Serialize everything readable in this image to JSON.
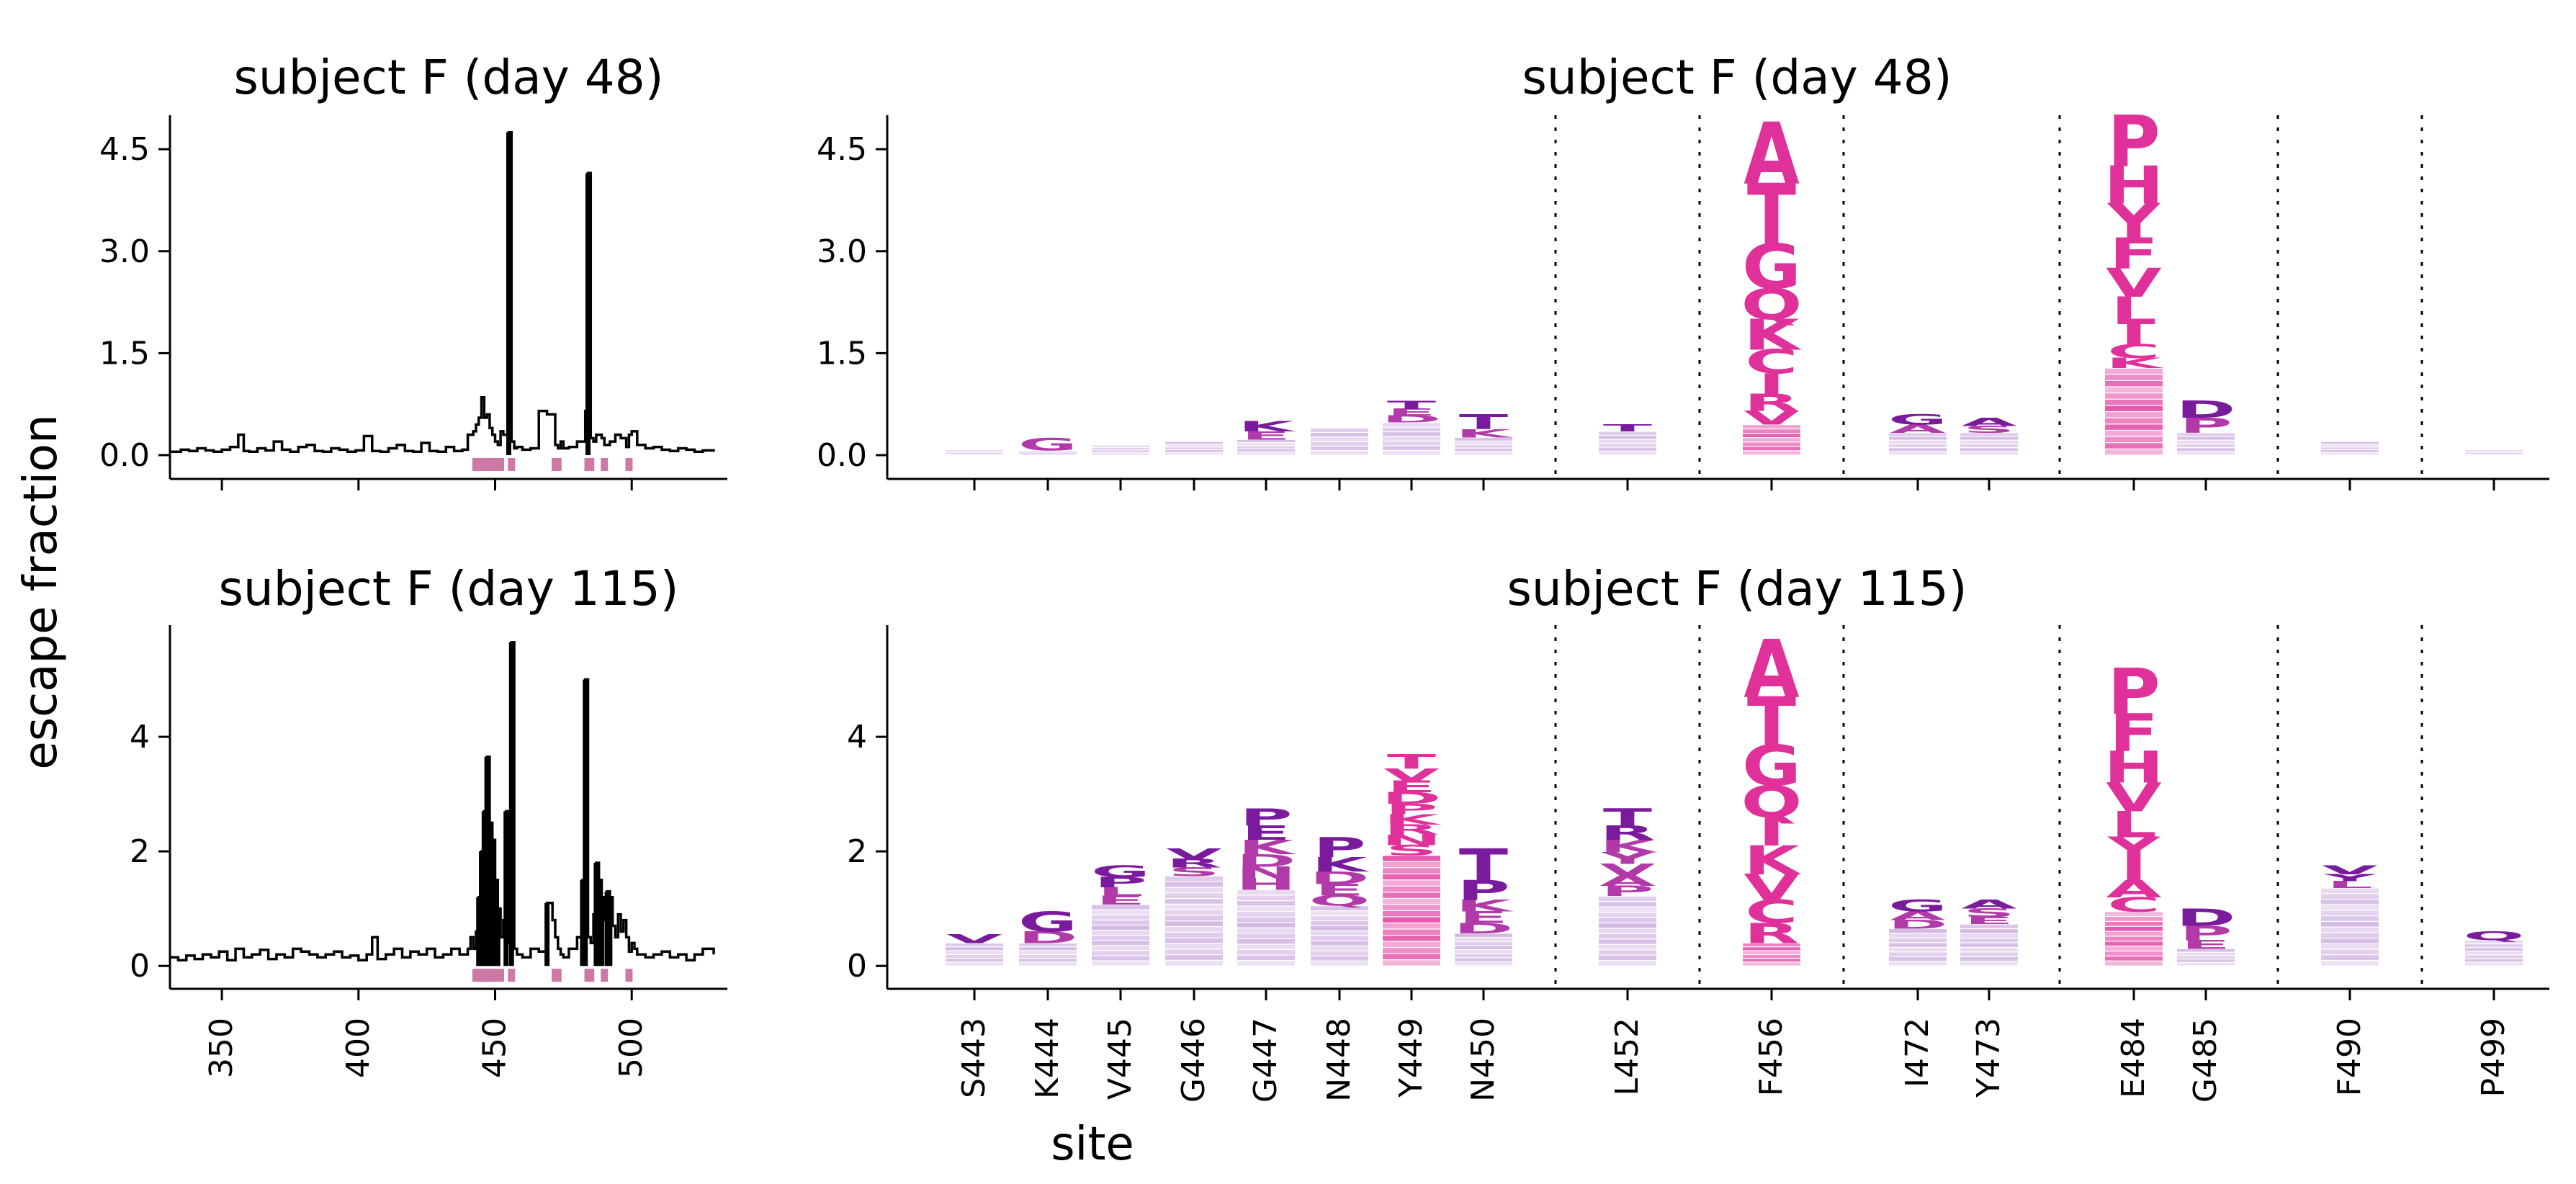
{
  "figure": {
    "ylabel": "escape fraction",
    "xlabel": "site"
  },
  "colors": {
    "line": "#000000",
    "site_marker": "#cc79a7",
    "high": "#e0309a",
    "mid": "#b23aa8",
    "low": "#7a1a9c",
    "faint": "#c9a8dd",
    "divider": "#000000"
  },
  "chart_data": [
    {
      "type": "line",
      "title": "subject F (day 48)",
      "xlim": [
        331,
        535
      ],
      "ylim": [
        -0.35,
        5.0
      ],
      "yticks": [
        "0.0",
        "1.5",
        "3.0",
        "4.5"
      ],
      "ytick_values": [
        0.0,
        1.5,
        3.0,
        4.5
      ],
      "xticks": [
        "350",
        "400",
        "450",
        "500"
      ],
      "xtick_values": [
        350,
        400,
        450,
        500
      ],
      "x": [
        331,
        335,
        338,
        341,
        344,
        347,
        350,
        353,
        356,
        358,
        360,
        363,
        366,
        369,
        372,
        375,
        378,
        381,
        384,
        387,
        390,
        393,
        396,
        399,
        402,
        405,
        408,
        411,
        414,
        417,
        420,
        423,
        426,
        429,
        432,
        435,
        438,
        440,
        442,
        443,
        444,
        445,
        446,
        447,
        448,
        449,
        450,
        451,
        452,
        453,
        454,
        455,
        456,
        457,
        458,
        460,
        463,
        466,
        469,
        472,
        473,
        474,
        475,
        477,
        480,
        483,
        484,
        485,
        486,
        487,
        489,
        490,
        492,
        494,
        496,
        498,
        499,
        500,
        502,
        505,
        508,
        511,
        514,
        517,
        520,
        523,
        526,
        530
      ],
      "values": [
        0.05,
        0.08,
        0.06,
        0.1,
        0.07,
        0.05,
        0.08,
        0.12,
        0.3,
        0.06,
        0.05,
        0.1,
        0.07,
        0.2,
        0.08,
        0.05,
        0.12,
        0.15,
        0.06,
        0.05,
        0.1,
        0.08,
        0.05,
        0.07,
        0.28,
        0.06,
        0.05,
        0.1,
        0.15,
        0.06,
        0.05,
        0.18,
        0.06,
        0.05,
        0.12,
        0.06,
        0.08,
        0.3,
        0.35,
        0.45,
        0.55,
        0.85,
        0.55,
        0.6,
        0.4,
        0.3,
        0.2,
        0.15,
        0.35,
        0.3,
        0.3,
        4.75,
        0.2,
        0.1,
        0.12,
        0.08,
        0.1,
        0.65,
        0.6,
        0.15,
        0.1,
        0.2,
        0.1,
        0.12,
        0.2,
        0.65,
        4.15,
        0.25,
        0.2,
        0.3,
        0.25,
        0.15,
        0.2,
        0.3,
        0.25,
        0.12,
        0.3,
        0.35,
        0.15,
        0.1,
        0.12,
        0.08,
        0.06,
        0.1,
        0.08,
        0.05,
        0.07,
        0.05
      ],
      "site_markers": [
        443,
        444,
        445,
        446,
        447,
        448,
        449,
        450,
        452,
        456,
        472,
        473,
        484,
        485,
        490,
        499
      ]
    },
    {
      "type": "logo",
      "title": "subject F (day 48)",
      "ylim": [
        -0.35,
        5.0
      ],
      "yticks": [
        "0.0",
        "1.5",
        "3.0",
        "4.5"
      ],
      "ytick_values": [
        0.0,
        1.5,
        3.0,
        4.5
      ],
      "sites": [
        "S443",
        "K444",
        "V445",
        "G446",
        "G447",
        "N448",
        "Y449",
        "N450",
        "L452",
        "F456",
        "I472",
        "Y473",
        "E484",
        "G485",
        "F490",
        "P499"
      ],
      "site_totals": [
        0.08,
        0.25,
        0.15,
        0.2,
        0.5,
        0.4,
        0.8,
        0.6,
        0.45,
        4.9,
        0.6,
        0.55,
        5.0,
        0.8,
        0.2,
        0.08
      ],
      "letters": [
        [],
        [
          {
            "aa": "G",
            "h": 0.18
          }
        ],
        [],
        [],
        [
          {
            "aa": "K",
            "h": 0.15
          },
          {
            "aa": "E",
            "h": 0.12
          }
        ],
        [],
        [
          {
            "aa": "T",
            "h": 0.12
          },
          {
            "aa": "E",
            "h": 0.1
          },
          {
            "aa": "D",
            "h": 0.1
          }
        ],
        [
          {
            "aa": "T",
            "h": 0.22
          },
          {
            "aa": "K",
            "h": 0.12
          }
        ],
        [
          {
            "aa": "T",
            "h": 0.1
          }
        ],
        [
          {
            "aa": "A",
            "h": 0.9
          },
          {
            "aa": "T",
            "h": 0.9
          },
          {
            "aa": "G",
            "h": 0.65
          },
          {
            "aa": "Q",
            "h": 0.45
          },
          {
            "aa": "K",
            "h": 0.45
          },
          {
            "aa": "C",
            "h": 0.35
          },
          {
            "aa": "I",
            "h": 0.3
          },
          {
            "aa": "R",
            "h": 0.25
          },
          {
            "aa": "V",
            "h": 0.2
          }
        ],
        [
          {
            "aa": "G",
            "h": 0.15
          },
          {
            "aa": "A",
            "h": 0.12
          }
        ],
        [
          {
            "aa": "A",
            "h": 0.12
          },
          {
            "aa": "S",
            "h": 0.1
          }
        ],
        [
          {
            "aa": "P",
            "h": 0.75
          },
          {
            "aa": "H",
            "h": 0.55
          },
          {
            "aa": "Y",
            "h": 0.5
          },
          {
            "aa": "F",
            "h": 0.45
          },
          {
            "aa": "V",
            "h": 0.42
          },
          {
            "aa": "L",
            "h": 0.4
          },
          {
            "aa": "I",
            "h": 0.3
          },
          {
            "aa": "C",
            "h": 0.2
          },
          {
            "aa": "K",
            "h": 0.15
          }
        ],
        [
          {
            "aa": "D",
            "h": 0.25
          },
          {
            "aa": "P",
            "h": 0.22
          }
        ],
        [],
        []
      ]
    },
    {
      "type": "line",
      "title": "subject F (day 115)",
      "xlim": [
        331,
        535
      ],
      "ylim": [
        -0.4,
        5.95
      ],
      "yticks": [
        "0",
        "2",
        "4"
      ],
      "ytick_values": [
        0,
        2,
        4
      ],
      "xticks": [
        "350",
        "400",
        "450",
        "500"
      ],
      "xtick_values": [
        350,
        400,
        450,
        500
      ],
      "x": [
        331,
        334,
        337,
        340,
        343,
        346,
        349,
        352,
        355,
        358,
        361,
        364,
        367,
        370,
        373,
        376,
        379,
        382,
        385,
        388,
        391,
        394,
        397,
        400,
        403,
        405,
        407,
        410,
        413,
        416,
        419,
        422,
        425,
        428,
        431,
        434,
        437,
        440,
        441,
        442,
        443,
        444,
        445,
        446,
        447,
        448,
        449,
        450,
        451,
        452,
        453,
        454,
        455,
        456,
        457,
        458,
        460,
        463,
        466,
        469,
        471,
        472,
        473,
        474,
        475,
        477,
        480,
        482,
        483,
        484,
        485,
        486,
        487,
        488,
        489,
        490,
        491,
        492,
        493,
        494,
        495,
        496,
        497,
        498,
        499,
        500,
        501,
        502,
        505,
        508,
        511,
        514,
        517,
        520,
        523,
        526,
        530
      ],
      "values": [
        0.15,
        0.1,
        0.18,
        0.12,
        0.2,
        0.15,
        0.25,
        0.1,
        0.3,
        0.15,
        0.2,
        0.28,
        0.12,
        0.2,
        0.15,
        0.3,
        0.25,
        0.2,
        0.15,
        0.2,
        0.25,
        0.15,
        0.18,
        0.1,
        0.2,
        0.5,
        0.12,
        0.2,
        0.3,
        0.15,
        0.25,
        0.2,
        0.3,
        0.15,
        0.2,
        0.3,
        0.2,
        0.3,
        0.5,
        0.3,
        0.6,
        1.2,
        2.0,
        2.7,
        3.65,
        2.5,
        2.2,
        1.5,
        1.0,
        0.5,
        0.8,
        2.7,
        0.4,
        5.65,
        0.3,
        0.2,
        0.15,
        0.3,
        0.25,
        1.1,
        0.8,
        0.5,
        0.3,
        0.2,
        0.15,
        0.3,
        0.5,
        1.5,
        5.0,
        0.5,
        0.4,
        0.9,
        1.8,
        1.5,
        1.2,
        0.8,
        1.3,
        1.2,
        0.7,
        0.5,
        0.9,
        0.6,
        0.8,
        0.5,
        0.25,
        0.4,
        0.3,
        0.2,
        0.15,
        0.2,
        0.25,
        0.15,
        0.2,
        0.1,
        0.2,
        0.3,
        0.2
      ],
      "site_markers": [
        443,
        444,
        445,
        446,
        447,
        448,
        449,
        450,
        452,
        456,
        472,
        473,
        484,
        485,
        490,
        499
      ]
    },
    {
      "type": "logo",
      "title": "subject F (day 115)",
      "ylim": [
        -0.4,
        5.95
      ],
      "yticks": [
        "0",
        "2",
        "4"
      ],
      "ytick_values": [
        0,
        2,
        4
      ],
      "sites": [
        "S443",
        "K444",
        "V445",
        "G446",
        "G447",
        "N448",
        "Y449",
        "N450",
        "L452",
        "F456",
        "I472",
        "Y473",
        "E484",
        "G485",
        "F490",
        "P499"
      ],
      "site_totals": [
        0.55,
        0.95,
        1.75,
        2.05,
        2.75,
        2.25,
        3.7,
        2.05,
        2.75,
        5.7,
        1.15,
        1.15,
        5.2,
        1.0,
        1.75,
        0.6
      ],
      "letters": [
        [
          {
            "aa": "V",
            "h": 0.15
          }
        ],
        [
          {
            "aa": "G",
            "h": 0.35
          },
          {
            "aa": "D",
            "h": 0.2
          }
        ],
        [
          {
            "aa": "G",
            "h": 0.2
          },
          {
            "aa": "P",
            "h": 0.18
          },
          {
            "aa": "L",
            "h": 0.15
          },
          {
            "aa": "E",
            "h": 0.15
          }
        ],
        [
          {
            "aa": "V",
            "h": 0.18
          },
          {
            "aa": "R",
            "h": 0.15
          },
          {
            "aa": "S",
            "h": 0.15
          }
        ],
        [
          {
            "aa": "P",
            "h": 0.3
          },
          {
            "aa": "E",
            "h": 0.25
          },
          {
            "aa": "K",
            "h": 0.25
          },
          {
            "aa": "D",
            "h": 0.22
          },
          {
            "aa": "N",
            "h": 0.2
          },
          {
            "aa": "H",
            "h": 0.2
          }
        ],
        [
          {
            "aa": "P",
            "h": 0.35
          },
          {
            "aa": "K",
            "h": 0.25
          },
          {
            "aa": "D",
            "h": 0.22
          },
          {
            "aa": "E",
            "h": 0.2
          },
          {
            "aa": "Q",
            "h": 0.18
          }
        ],
        [
          {
            "aa": "T",
            "h": 0.25
          },
          {
            "aa": "V",
            "h": 0.22
          },
          {
            "aa": "E",
            "h": 0.2
          },
          {
            "aa": "D",
            "h": 0.2
          },
          {
            "aa": "P",
            "h": 0.18
          },
          {
            "aa": "K",
            "h": 0.18
          },
          {
            "aa": "R",
            "h": 0.18
          },
          {
            "aa": "N",
            "h": 0.18
          },
          {
            "aa": "S",
            "h": 0.18
          }
        ],
        [
          {
            "aa": "T",
            "h": 0.55
          },
          {
            "aa": "P",
            "h": 0.35
          },
          {
            "aa": "K",
            "h": 0.2
          },
          {
            "aa": "E",
            "h": 0.2
          },
          {
            "aa": "D",
            "h": 0.18
          }
        ],
        [
          {
            "aa": "T",
            "h": 0.3
          },
          {
            "aa": "R",
            "h": 0.25
          },
          {
            "aa": "K",
            "h": 0.22
          },
          {
            "aa": "Y",
            "h": 0.2
          },
          {
            "aa": "V",
            "h": 0.2
          },
          {
            "aa": "A",
            "h": 0.18
          },
          {
            "aa": "P",
            "h": 0.18
          }
        ],
        [
          {
            "aa": "A",
            "h": 1.0
          },
          {
            "aa": "T",
            "h": 0.85
          },
          {
            "aa": "G",
            "h": 0.7
          },
          {
            "aa": "Q",
            "h": 0.55
          },
          {
            "aa": "I",
            "h": 0.5
          },
          {
            "aa": "K",
            "h": 0.5
          },
          {
            "aa": "V",
            "h": 0.45
          },
          {
            "aa": "C",
            "h": 0.4
          },
          {
            "aa": "R",
            "h": 0.35
          }
        ],
        [
          {
            "aa": "G",
            "h": 0.2
          },
          {
            "aa": "A",
            "h": 0.15
          },
          {
            "aa": "D",
            "h": 0.15
          }
        ],
        [
          {
            "aa": "A",
            "h": 0.15
          },
          {
            "aa": "S",
            "h": 0.15
          },
          {
            "aa": "E",
            "h": 0.12
          }
        ],
        [
          {
            "aa": "P",
            "h": 0.8
          },
          {
            "aa": "F",
            "h": 0.65
          },
          {
            "aa": "H",
            "h": 0.55
          },
          {
            "aa": "V",
            "h": 0.5
          },
          {
            "aa": "L",
            "h": 0.45
          },
          {
            "aa": "Y",
            "h": 0.4
          },
          {
            "aa": "I",
            "h": 0.35
          },
          {
            "aa": "A",
            "h": 0.3
          },
          {
            "aa": "C",
            "h": 0.25
          }
        ],
        [
          {
            "aa": "D",
            "h": 0.3
          },
          {
            "aa": "P",
            "h": 0.25
          },
          {
            "aa": "E",
            "h": 0.15
          }
        ],
        [
          {
            "aa": "V",
            "h": 0.15
          },
          {
            "aa": "Y",
            "h": 0.12
          },
          {
            "aa": "L",
            "h": 0.12
          }
        ],
        [
          {
            "aa": "Q",
            "h": 0.15
          }
        ]
      ]
    }
  ]
}
